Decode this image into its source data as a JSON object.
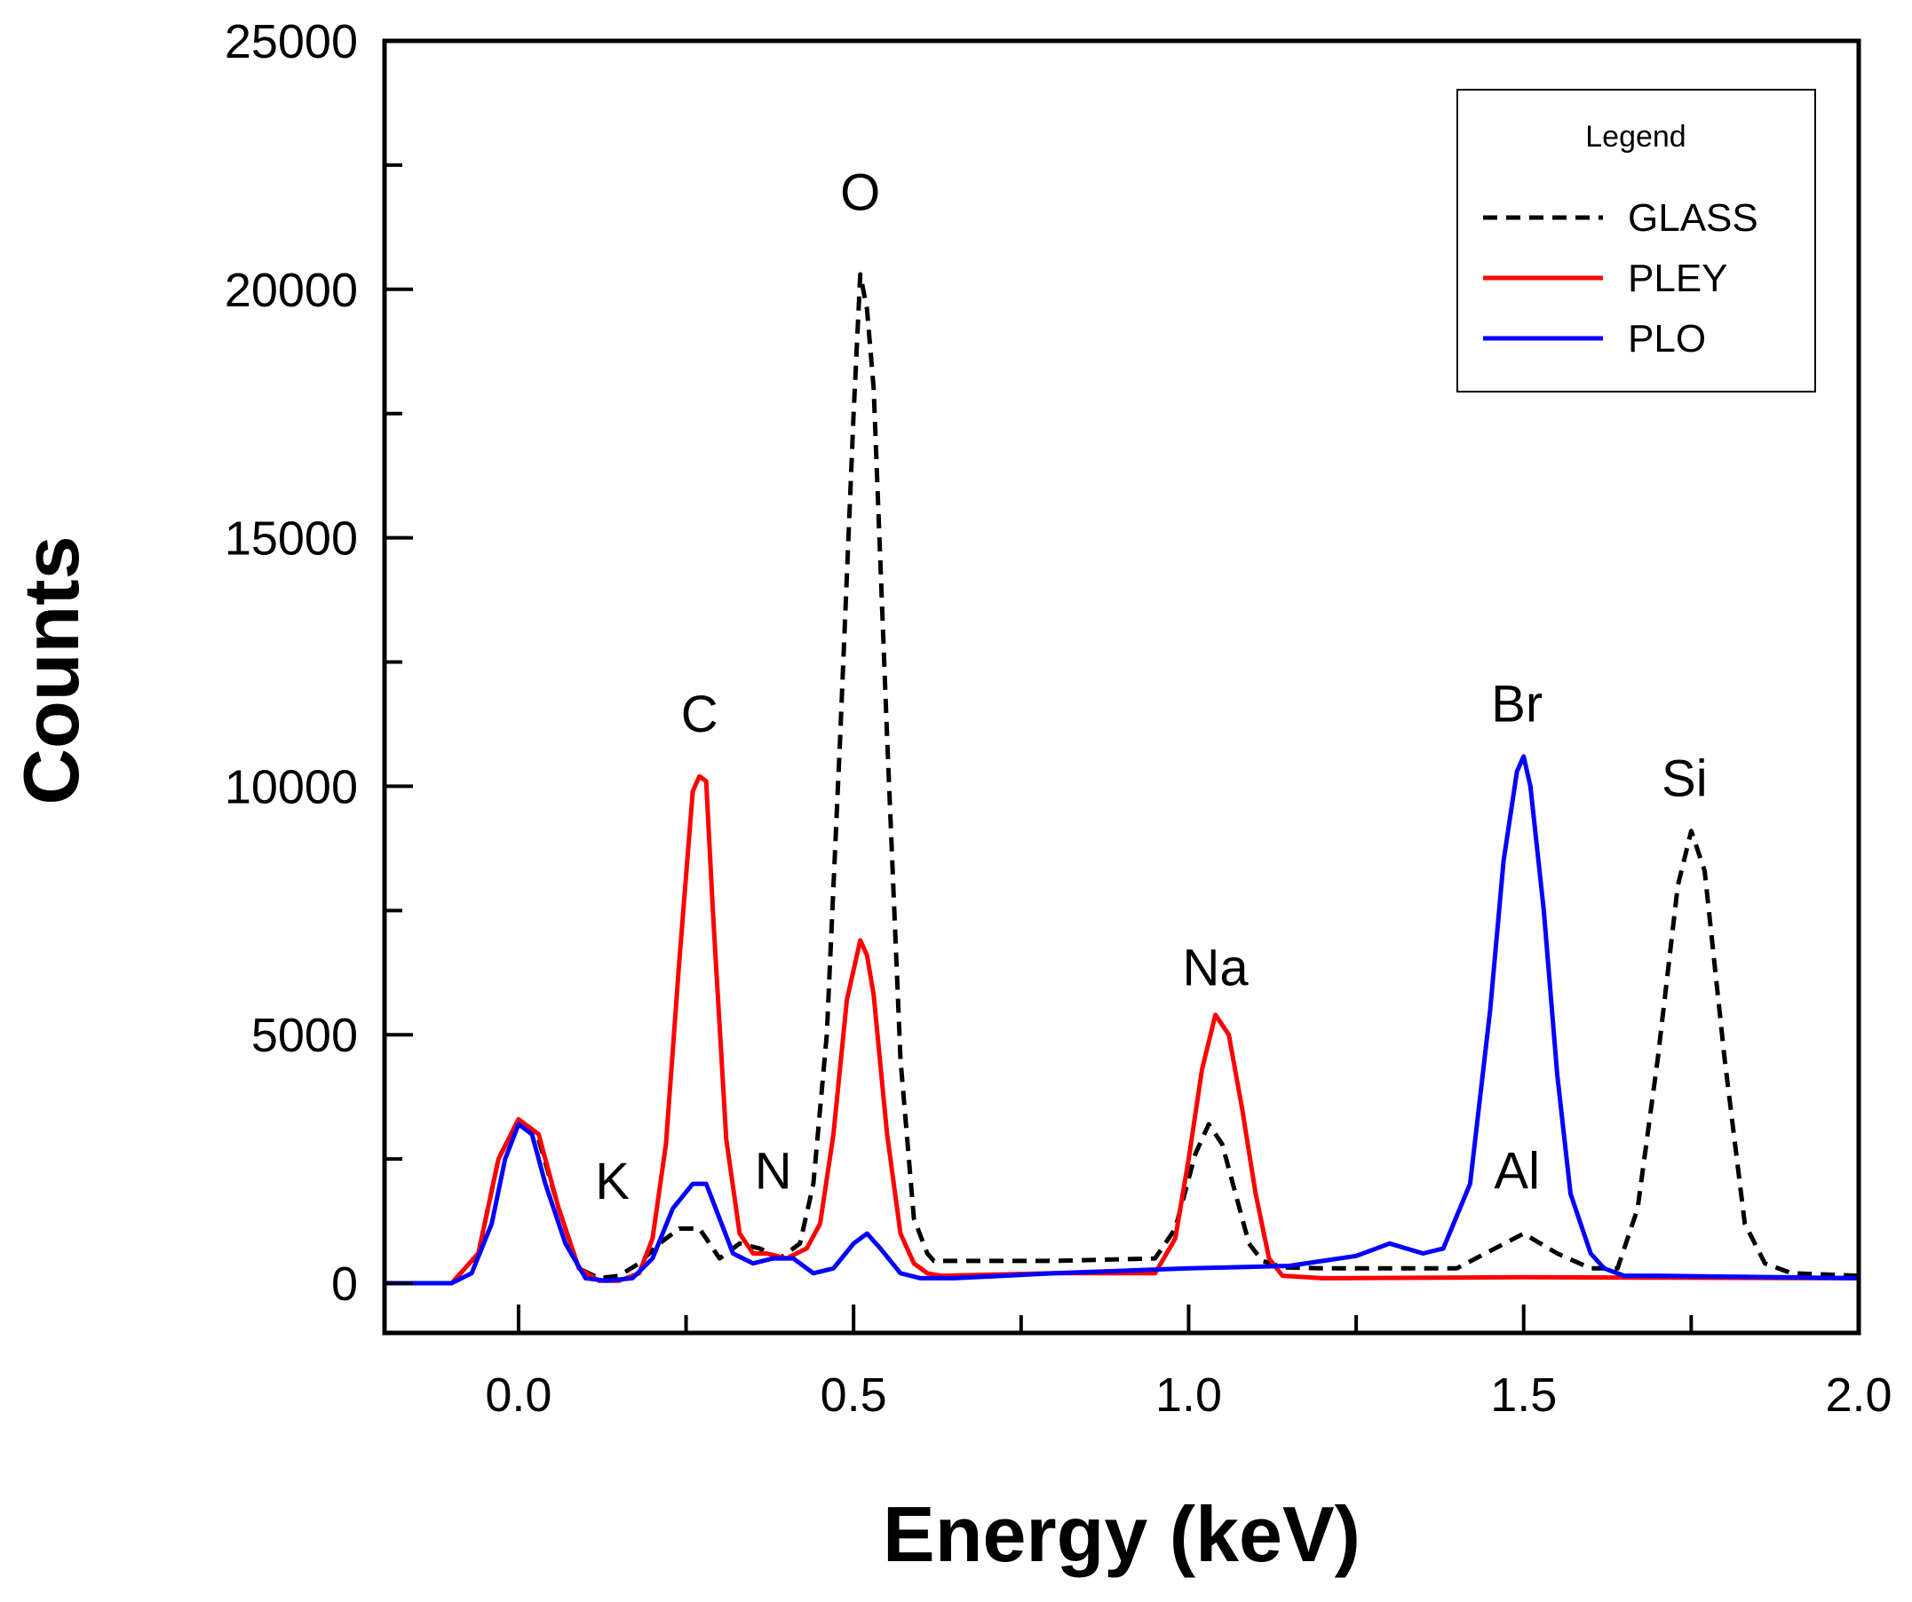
{
  "chart_data": {
    "type": "line",
    "xlabel": "Energy (keV)",
    "ylabel": "Counts",
    "xlim": [
      -0.2,
      2.0
    ],
    "ylim": [
      -1000,
      25000
    ],
    "xticks": [
      0.0,
      0.5,
      1.0,
      1.5,
      2.0
    ],
    "xtick_labels": [
      "0.0",
      "0.5",
      "1.0",
      "1.5",
      "2.0"
    ],
    "yticks": [
      0,
      5000,
      10000,
      15000,
      20000,
      25000
    ],
    "ytick_labels": [
      "0",
      "5000",
      "10000",
      "15000",
      "20000",
      "25000"
    ],
    "grid": false,
    "legend": {
      "title": "Legend",
      "position": "top-right",
      "entries": [
        "GLASS",
        "PLEY",
        "PLO"
      ]
    },
    "series": [
      {
        "name": "GLASS",
        "color": "#000000",
        "style": "dashed",
        "x": [
          -0.2,
          -0.1,
          -0.06,
          -0.03,
          0.0,
          0.03,
          0.06,
          0.09,
          0.12,
          0.15,
          0.18,
          0.21,
          0.24,
          0.27,
          0.3,
          0.33,
          0.36,
          0.39,
          0.42,
          0.44,
          0.46,
          0.48,
          0.5,
          0.51,
          0.52,
          0.53,
          0.55,
          0.57,
          0.59,
          0.61,
          0.62,
          0.65,
          0.8,
          0.95,
          0.98,
          1.01,
          1.03,
          1.05,
          1.07,
          1.09,
          1.11,
          1.14,
          1.2,
          1.3,
          1.4,
          1.45,
          1.5,
          1.55,
          1.6,
          1.64,
          1.67,
          1.7,
          1.73,
          1.75,
          1.77,
          1.8,
          1.83,
          1.86,
          1.9,
          2.0
        ],
        "y": [
          0,
          0,
          600,
          2500,
          3300,
          2900,
          1500,
          300,
          100,
          150,
          400,
          800,
          1100,
          1100,
          500,
          800,
          700,
          500,
          800,
          2000,
          5000,
          11000,
          17500,
          20300,
          19600,
          18000,
          11000,
          4500,
          1300,
          600,
          450,
          450,
          450,
          500,
          1100,
          2600,
          3200,
          2800,
          1800,
          800,
          450,
          320,
          300,
          300,
          300,
          650,
          1000,
          600,
          300,
          300,
          1500,
          4500,
          8000,
          9100,
          8300,
          4500,
          1200,
          400,
          200,
          150
        ]
      },
      {
        "name": "PLEY",
        "color": "#ff0000",
        "style": "solid",
        "x": [
          -0.2,
          -0.1,
          -0.06,
          -0.03,
          0.0,
          0.03,
          0.06,
          0.09,
          0.12,
          0.15,
          0.18,
          0.2,
          0.22,
          0.24,
          0.26,
          0.27,
          0.28,
          0.29,
          0.31,
          0.33,
          0.35,
          0.37,
          0.4,
          0.43,
          0.45,
          0.47,
          0.49,
          0.51,
          0.52,
          0.53,
          0.55,
          0.57,
          0.59,
          0.61,
          0.63,
          0.8,
          0.95,
          0.98,
          1.0,
          1.02,
          1.04,
          1.06,
          1.08,
          1.1,
          1.12,
          1.14,
          1.2,
          1.5,
          2.0
        ],
        "y": [
          0,
          0,
          600,
          2500,
          3300,
          3000,
          1500,
          300,
          50,
          50,
          200,
          900,
          2800,
          6500,
          9900,
          10200,
          10100,
          7500,
          2900,
          1000,
          600,
          600,
          500,
          700,
          1200,
          3000,
          5700,
          6900,
          6600,
          5800,
          3000,
          1000,
          400,
          200,
          150,
          200,
          200,
          900,
          2500,
          4300,
          5400,
          5000,
          3500,
          1800,
          500,
          150,
          100,
          120,
          100
        ]
      },
      {
        "name": "PLO",
        "color": "#0000ff",
        "style": "solid",
        "x": [
          -0.2,
          -0.1,
          -0.07,
          -0.04,
          -0.02,
          0.0,
          0.02,
          0.04,
          0.07,
          0.1,
          0.13,
          0.17,
          0.2,
          0.23,
          0.26,
          0.28,
          0.3,
          0.32,
          0.35,
          0.38,
          0.41,
          0.44,
          0.47,
          0.5,
          0.52,
          0.54,
          0.57,
          0.6,
          0.65,
          0.8,
          1.0,
          1.15,
          1.2,
          1.25,
          1.3,
          1.35,
          1.38,
          1.42,
          1.45,
          1.47,
          1.49,
          1.5,
          1.51,
          1.53,
          1.55,
          1.57,
          1.6,
          1.62,
          1.65,
          1.7,
          2.0
        ],
        "y": [
          0,
          0,
          200,
          1200,
          2500,
          3200,
          3000,
          2000,
          800,
          100,
          50,
          100,
          500,
          1500,
          2000,
          2000,
          1300,
          600,
          400,
          500,
          500,
          200,
          300,
          800,
          1000,
          700,
          200,
          100,
          100,
          200,
          300,
          350,
          450,
          550,
          800,
          600,
          700,
          2000,
          5500,
          8500,
          10300,
          10600,
          10000,
          7500,
          4200,
          1800,
          600,
          300,
          150,
          150,
          100
        ]
      }
    ],
    "annotations": [
      {
        "text": "O",
        "x": 0.51,
        "y": 21600
      },
      {
        "text": "C",
        "x": 0.27,
        "y": 11100
      },
      {
        "text": "K",
        "x": 0.14,
        "y": 1700
      },
      {
        "text": "N",
        "x": 0.38,
        "y": 1900
      },
      {
        "text": "Na",
        "x": 1.04,
        "y": 6000
      },
      {
        "text": "Br",
        "x": 1.49,
        "y": 11300
      },
      {
        "text": "Al",
        "x": 1.49,
        "y": 1900
      },
      {
        "text": "Si",
        "x": 1.74,
        "y": 9800
      }
    ]
  }
}
